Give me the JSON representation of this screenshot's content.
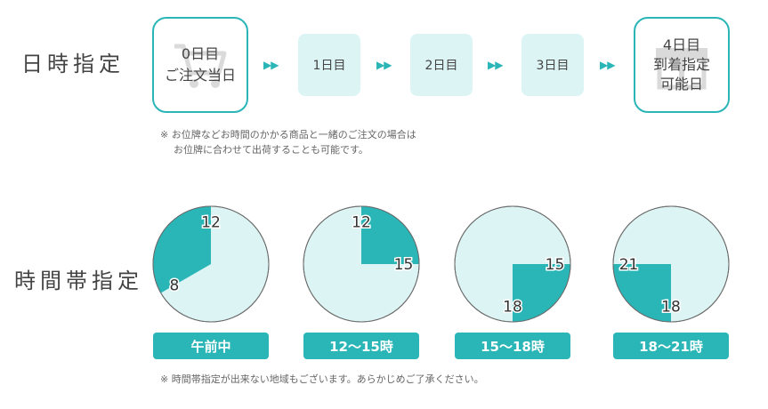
{
  "date_section": {
    "title": "日時指定",
    "steps": [
      {
        "lines": [
          "0日目",
          "ご注文当日"
        ],
        "icon": "cart-icon"
      },
      {
        "lines": [
          "1日目"
        ]
      },
      {
        "lines": [
          "2日目"
        ]
      },
      {
        "lines": [
          "3日目"
        ]
      },
      {
        "lines": [
          "4日目",
          "到着指定",
          "可能日"
        ],
        "icon": "gift-box-icon"
      }
    ],
    "note_line1": "※ お位牌などお時間のかかる商品と一緒のご注文の場合は",
    "note_line2": "お位牌に合わせて出荷することも可能です。"
  },
  "time_section": {
    "title": "時間帯指定",
    "slots": [
      {
        "label": "午前中",
        "start": 8,
        "end": 12,
        "start_text": "8",
        "end_text": "12"
      },
      {
        "label": "12〜15時",
        "start": 12,
        "end": 15,
        "start_text": "12",
        "end_text": "15"
      },
      {
        "label": "15〜18時",
        "start": 15,
        "end": 18,
        "start_text": "15",
        "end_text": "18"
      },
      {
        "label": "18〜21時",
        "start": 18,
        "end": 21,
        "start_text": "18",
        "end_text": "21"
      }
    ],
    "note": "※ 時間帯指定が出来ない地域もございます。あらかじめご了承ください。"
  },
  "colors": {
    "accent": "#2ab5b7",
    "light": "#dcf4f4",
    "clock_edge": "#6a6a6a"
  }
}
